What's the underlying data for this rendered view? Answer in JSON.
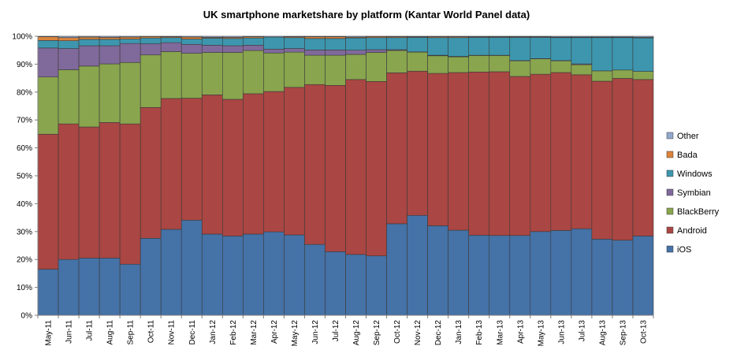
{
  "chart_data": {
    "type": "bar",
    "stacked": true,
    "title": "UK smartphone marketshare by platform (Kantar World Panel data)",
    "xlabel": "",
    "ylabel": "",
    "ylim": [
      0,
      100
    ],
    "y_ticks": [
      "0%",
      "10%",
      "20%",
      "30%",
      "40%",
      "50%",
      "60%",
      "70%",
      "80%",
      "90%",
      "100%"
    ],
    "grid": false,
    "legend_position": "right",
    "categories": [
      "May-11",
      "Jun-11",
      "Jul-11",
      "Aug-11",
      "Sep-11",
      "Oct-11",
      "Nov-11",
      "Dec-11",
      "Jan-12",
      "Feb-12",
      "Mar-12",
      "Apr-12",
      "May-12",
      "Jun-12",
      "Jul-12",
      "Aug-12",
      "Sep-12",
      "Oct-12",
      "Nov-12",
      "Dec-12",
      "Jan-13",
      "Feb-13",
      "Mar-13",
      "Apr-13",
      "May-13",
      "Jun-13",
      "Jul-13",
      "Aug-13",
      "Sep-13",
      "Oct-13"
    ],
    "series": [
      {
        "name": "iOS",
        "color": "#4572A7",
        "values": [
          16.5,
          20,
          20.5,
          20.5,
          18.3,
          27.6,
          30.8,
          34.1,
          29.1,
          28.4,
          29.1,
          29.9,
          28.8,
          25.4,
          22.8,
          21.8,
          21.3,
          32.8,
          35.8,
          32.1,
          30.5,
          28.7,
          28.6,
          28.6,
          30.0,
          30.4,
          31.0,
          27.3,
          26.9,
          28.4
        ]
      },
      {
        "name": "Android",
        "color": "#AA4643",
        "values": [
          48.4,
          48.6,
          47.0,
          48.6,
          50.3,
          46.9,
          46.9,
          43.7,
          49.9,
          49.0,
          50.3,
          50.3,
          52.9,
          57.3,
          59.6,
          62.7,
          62.5,
          54.1,
          51.7,
          54.6,
          56.5,
          58.5,
          58.7,
          57.0,
          56.4,
          56.6,
          55.2,
          56.6,
          58.0,
          56.1
        ]
      },
      {
        "name": "BlackBerry",
        "color": "#89A54E",
        "values": [
          20.5,
          19.4,
          21.8,
          21.0,
          22.0,
          18.8,
          16.8,
          16.1,
          15.2,
          16.8,
          15.5,
          13.8,
          12.6,
          10.5,
          10.8,
          9.0,
          10.4,
          8.0,
          6.8,
          6.3,
          5.6,
          5.9,
          5.8,
          5.6,
          5.5,
          4.2,
          3.6,
          3.7,
          3.0,
          2.9
        ]
      },
      {
        "name": "Symbian",
        "color": "#80699B",
        "values": [
          10.4,
          7.6,
          7.3,
          6.5,
          6.8,
          4.0,
          3.2,
          3.2,
          2.6,
          2.4,
          1.9,
          1.4,
          1.3,
          1.9,
          1.9,
          1.5,
          1.0,
          0.3,
          0.1,
          0.2,
          0.2,
          0.1,
          0.1,
          0.1,
          0.1,
          0.1,
          0.3,
          0.0,
          0.0,
          0.0
        ]
      },
      {
        "name": "Windows",
        "color": "#3D96AE",
        "values": [
          2.7,
          2.8,
          2.3,
          2.3,
          1.6,
          2.1,
          1.8,
          1.9,
          2.5,
          2.6,
          2.6,
          4.3,
          3.9,
          4.1,
          4.1,
          4.4,
          4.3,
          4.3,
          5.2,
          6.3,
          6.7,
          6.4,
          6.4,
          8.3,
          7.6,
          8.2,
          9.4,
          11.9,
          11.6,
          12.0
        ]
      },
      {
        "name": "Bada",
        "color": "#DB843D",
        "values": [
          1.3,
          1.1,
          0.8,
          0.7,
          0.7,
          0.5,
          0.3,
          0.7,
          0.3,
          0.4,
          0.4,
          0.0,
          0.3,
          0.6,
          0.6,
          0.3,
          0.4,
          0.3,
          0.2,
          0.3,
          0.3,
          0.2,
          0.2,
          0.2,
          0.2,
          0.2,
          0.2,
          0.2,
          0.2,
          0.2
        ]
      },
      {
        "name": "Other",
        "color": "#92A8CD",
        "values": [
          0.2,
          0.5,
          0.3,
          0.4,
          0.3,
          0.1,
          0.2,
          0.3,
          0.4,
          0.4,
          0.2,
          0.3,
          0.2,
          0.2,
          0.2,
          0.3,
          0.1,
          0.2,
          0.2,
          0.2,
          0.2,
          0.2,
          0.2,
          0.2,
          0.2,
          0.3,
          0.3,
          0.3,
          0.3,
          0.4
        ]
      }
    ]
  }
}
